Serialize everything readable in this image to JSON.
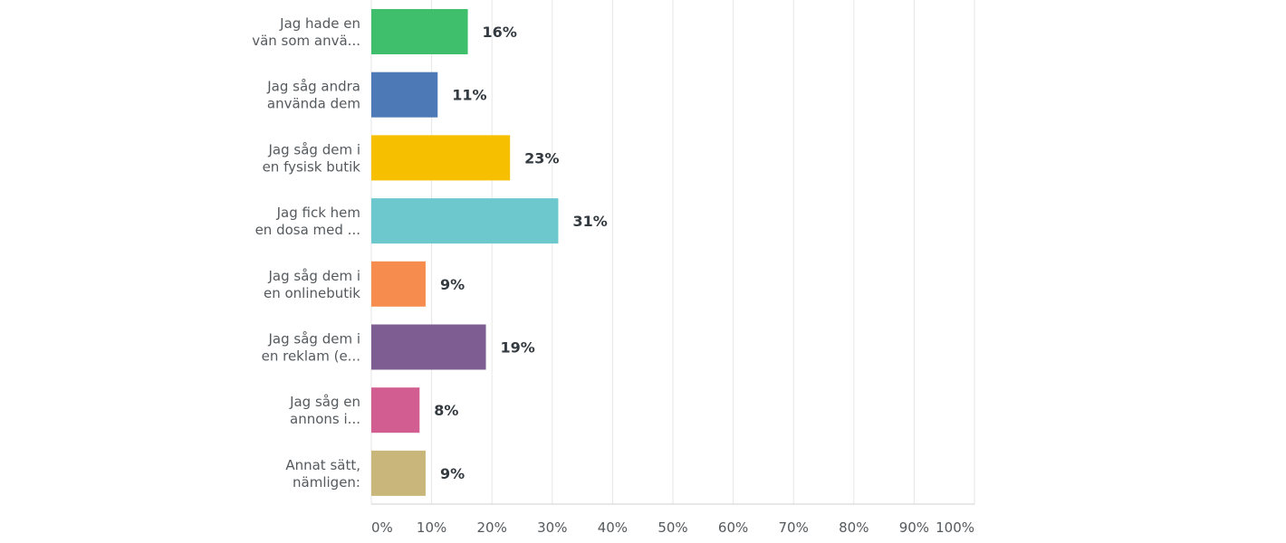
{
  "chart_data": {
    "type": "bar",
    "orientation": "horizontal",
    "title": "",
    "xlabel": "",
    "ylabel": "",
    "xlim": [
      0,
      100
    ],
    "grid": true,
    "ticks": [
      "0%",
      "10%",
      "20%",
      "30%",
      "40%",
      "50%",
      "60%",
      "70%",
      "80%",
      "90%",
      "100%"
    ],
    "categories": [
      [
        "Jag hade en",
        "vän som anvä..."
      ],
      [
        "Jag såg andra",
        "använda dem"
      ],
      [
        "Jag såg dem i",
        "en fysisk butik"
      ],
      [
        "Jag fick hem",
        "en dosa med ..."
      ],
      [
        "Jag såg dem i",
        "en onlinebutik"
      ],
      [
        "Jag såg dem i",
        "en reklam (e..."
      ],
      [
        "Jag såg en",
        "annons i..."
      ],
      [
        "Annat sätt,",
        "nämligen:"
      ]
    ],
    "values": [
      16,
      11,
      23,
      31,
      9,
      19,
      8,
      9
    ],
    "value_labels": [
      "16%",
      "11%",
      "23%",
      "31%",
      "9%",
      "19%",
      "8%",
      "9%"
    ],
    "colors": [
      "#3fbf6c",
      "#4d7ab6",
      "#f6c000",
      "#6cc8cc",
      "#f68d4e",
      "#7d5d92",
      "#d25e91",
      "#c8b67b"
    ]
  }
}
